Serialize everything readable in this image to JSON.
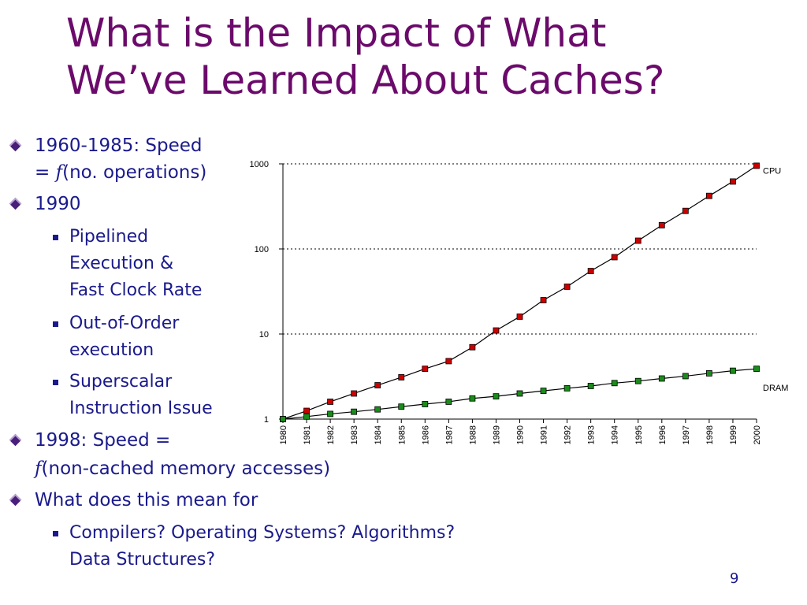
{
  "title": {
    "line1": "What is the Impact of What",
    "line2": "We’ve Learned About Caches?"
  },
  "bullets": {
    "b1_line1": "1960-1985: Speed",
    "b1_line2_prefix": "= ",
    "b1_line2_f": "f",
    "b1_line2_rest": "(no. operations)",
    "b2": "1990",
    "b2_sub1_l1": "Pipelined",
    "b2_sub1_l2": "Execution &",
    "b2_sub1_l3": "Fast Clock Rate",
    "b2_sub2_l1": "Out-of-Order",
    "b2_sub2_l2": "execution",
    "b2_sub3_l1": "Superscalar",
    "b2_sub3_l2": "Instruction Issue",
    "b3_line1": "1998: Speed =",
    "b3_line2_f": "f",
    "b3_line2_rest": "(non-cached memory accesses)",
    "b4": "What does this mean for",
    "b4_sub1_l1": "Compilers? Operating Systems? Algorithms?",
    "b4_sub1_l2": "Data Structures?"
  },
  "page_number": "9",
  "chart_data": {
    "type": "line",
    "yscale": "log",
    "ylim": [
      1,
      1000
    ],
    "yticks": [
      "1",
      "10",
      "100",
      "1000"
    ],
    "grid": "dotted horizontal at 10, 100, 1000",
    "x": [
      "1980",
      "1981",
      "1982",
      "1983",
      "1984",
      "1985",
      "1986",
      "1987",
      "1988",
      "1989",
      "1990",
      "1991",
      "1992",
      "1993",
      "1994",
      "1995",
      "1996",
      "1997",
      "1998",
      "1999",
      "2000"
    ],
    "series": [
      {
        "name": "CPU",
        "color": "#cc0000",
        "values": [
          1,
          1.25,
          1.6,
          2.0,
          2.5,
          3.1,
          3.9,
          4.8,
          7.0,
          11,
          16,
          25,
          36,
          55,
          80,
          125,
          190,
          280,
          420,
          620,
          950
        ]
      },
      {
        "name": "DRAM",
        "color": "#1a8c1a",
        "values": [
          1,
          1.07,
          1.15,
          1.22,
          1.3,
          1.4,
          1.5,
          1.6,
          1.75,
          1.85,
          2.0,
          2.15,
          2.3,
          2.45,
          2.65,
          2.8,
          3.0,
          3.2,
          3.45,
          3.7,
          3.9
        ]
      }
    ]
  }
}
